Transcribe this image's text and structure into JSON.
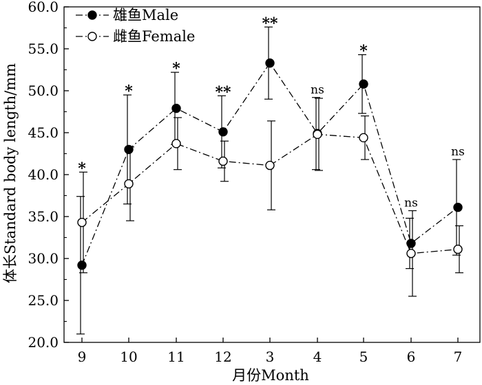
{
  "chart_data": {
    "type": "line",
    "categories": [
      "9",
      "10",
      "11",
      "12",
      "3",
      "4",
      "5",
      "6",
      "7"
    ],
    "xlabel": "月份Month",
    "ylabel": "体长Standard body length/mm",
    "ylim": [
      20.0,
      60.0
    ],
    "yticks": [
      "20.0",
      "25.0",
      "30.0",
      "35.0",
      "40.0",
      "45.0",
      "50.0",
      "55.0",
      "60.0"
    ],
    "series": [
      {
        "name": "雄鱼Male",
        "marker": "filled-circle",
        "values": [
          29.2,
          43.0,
          47.9,
          45.1,
          53.3,
          44.9,
          50.8,
          31.8,
          36.1
        ],
        "errors": [
          8.2,
          6.5,
          4.3,
          4.3,
          4.3,
          4.3,
          3.5,
          3.0,
          5.7
        ]
      },
      {
        "name": "雌鱼Female",
        "marker": "open-circle",
        "values": [
          34.3,
          38.9,
          43.7,
          41.6,
          41.1,
          44.8,
          44.4,
          30.6,
          31.1
        ],
        "errors": [
          6.0,
          4.4,
          3.1,
          2.4,
          5.3,
          4.3,
          2.6,
          5.1,
          2.8
        ]
      }
    ],
    "significance": [
      "*",
      "*",
      "*",
      "**",
      "**",
      "ns",
      "*",
      "ns",
      "ns"
    ]
  }
}
